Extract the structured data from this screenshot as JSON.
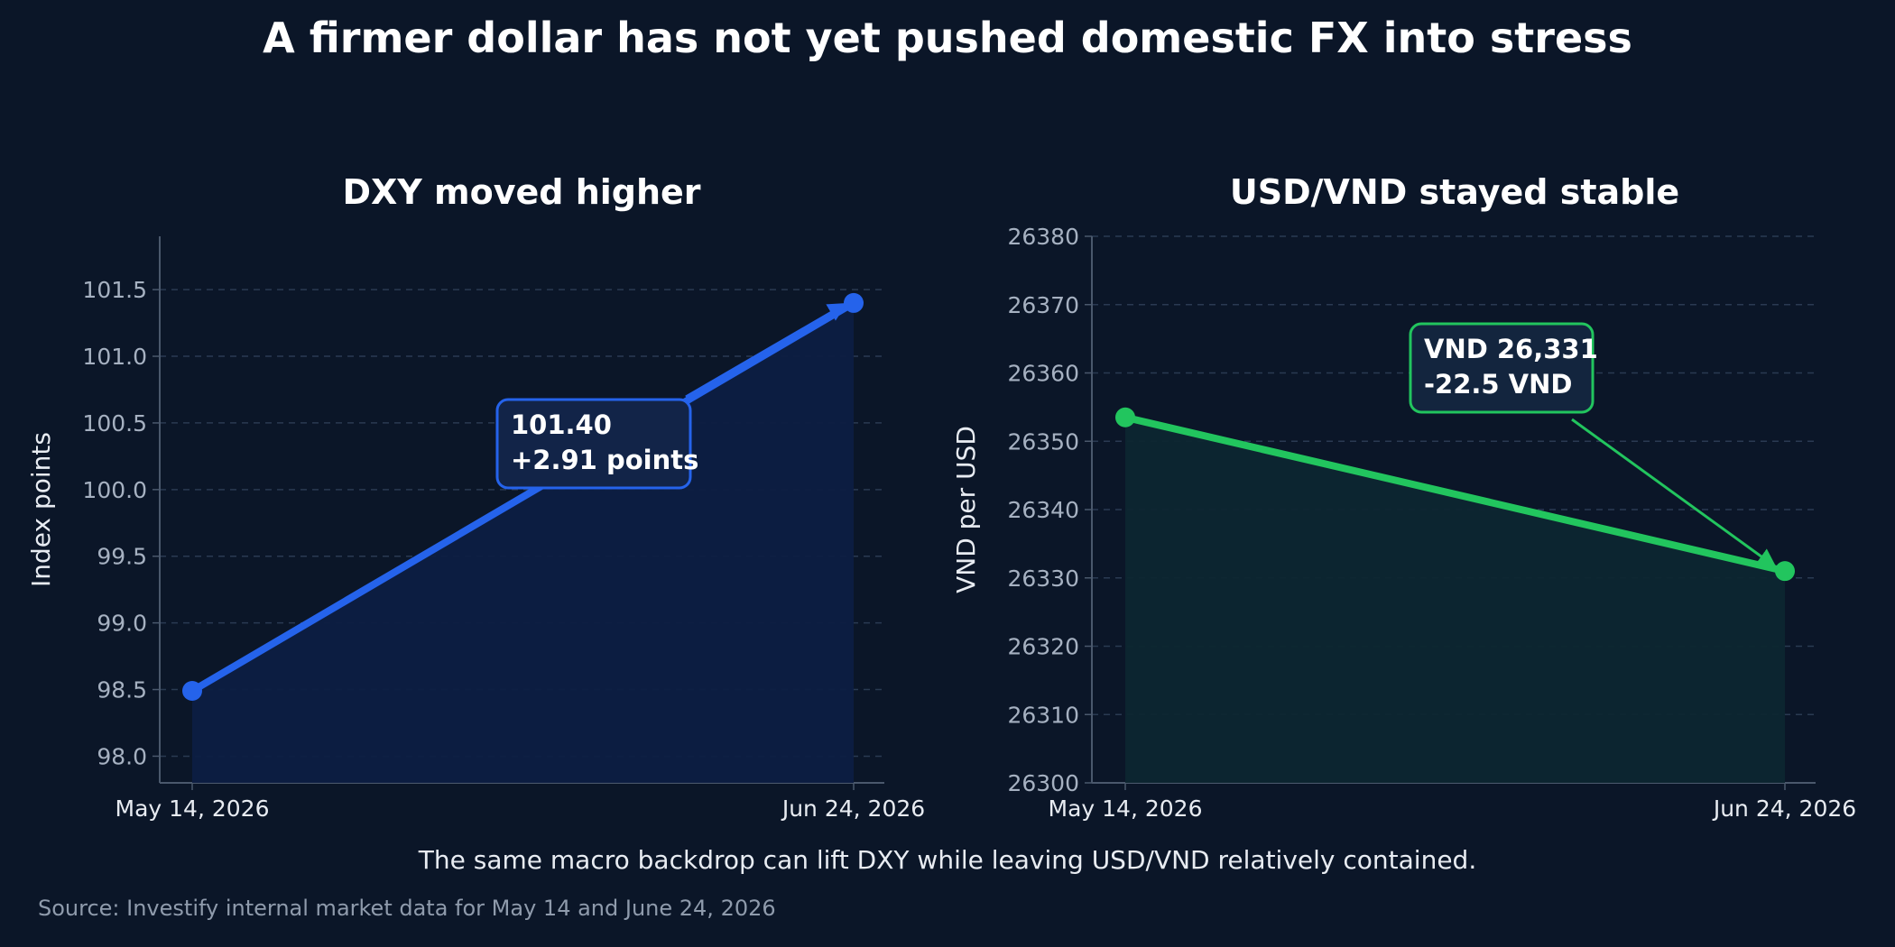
{
  "title": "A firmer dollar has not yet pushed domestic FX into stress",
  "subtitle": "The same macro backdrop can lift DXY while leaving USD/VND relatively contained.",
  "source": "Source: Investify internal market data for May 14 and June 24, 2026",
  "colors": {
    "background": "#0b1628",
    "dxy": "#2563eb",
    "vnd": "#22c55e"
  },
  "chart_data": [
    {
      "type": "line",
      "title": "DXY moved higher",
      "ylabel": "Index points",
      "xlabel": "",
      "x": [
        "May 14, 2026",
        "Jun 24, 2026"
      ],
      "series": [
        {
          "values": [
            98.49,
            101.4
          ]
        }
      ],
      "ylim": [
        97.8,
        101.9
      ],
      "yticks": [
        "98.0",
        "98.5",
        "99.0",
        "99.5",
        "100.0",
        "100.5",
        "101.0",
        "101.5"
      ],
      "grid": true,
      "annotation": {
        "lines": [
          "101.40",
          "+2.91 points"
        ]
      }
    },
    {
      "type": "line",
      "title": "USD/VND stayed stable",
      "ylabel": "VND per USD",
      "xlabel": "",
      "x": [
        "May 14, 2026",
        "Jun 24, 2026"
      ],
      "series": [
        {
          "values": [
            26353.5,
            26331
          ]
        }
      ],
      "ylim": [
        26300,
        26380
      ],
      "yticks": [
        "26300",
        "26310",
        "26320",
        "26330",
        "26340",
        "26350",
        "26360",
        "26370",
        "26380"
      ],
      "grid": true,
      "annotation": {
        "lines": [
          "VND 26,331",
          "-22.5 VND"
        ]
      }
    }
  ]
}
